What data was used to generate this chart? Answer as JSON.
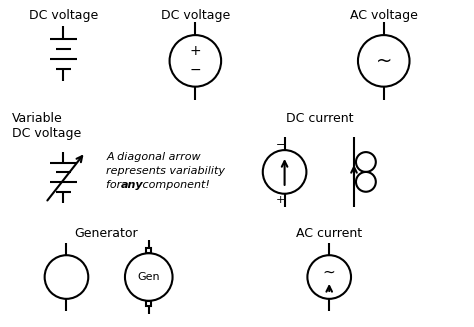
{
  "bg_color": "#ffffff",
  "line_color": "#000000",
  "labels": {
    "dc_voltage_battery": "DC voltage",
    "dc_voltage_source": "DC voltage",
    "ac_voltage": "AC voltage",
    "variable_dc": "Variable\nDC voltage",
    "dc_current": "DC current",
    "generator": "Generator",
    "ac_current": "AC current"
  }
}
